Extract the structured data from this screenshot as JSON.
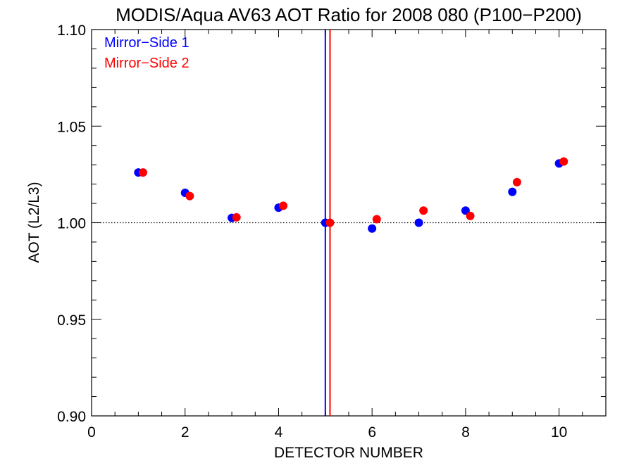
{
  "chart_data": {
    "type": "scatter",
    "title": "MODIS/Aqua AV63 AOT Ratio for 2008 080 (P100−P200)",
    "xlabel": "DETECTOR NUMBER",
    "ylabel": "AOT (L2/L3)",
    "xlim": [
      0,
      11
    ],
    "ylim": [
      0.9,
      1.1
    ],
    "x_ticks": [
      0,
      2,
      4,
      6,
      8,
      10
    ],
    "x_tick_labels": [
      "0",
      "2",
      "4",
      "6",
      "8",
      "10"
    ],
    "y_ticks": [
      0.9,
      0.95,
      1.0,
      1.05,
      1.1
    ],
    "y_tick_labels": [
      "0.90",
      "0.95",
      "1.00",
      "1.05",
      "1.10"
    ],
    "reference_line": {
      "y": 1.0,
      "style": "dotted"
    },
    "legend_position": "top-left",
    "series": [
      {
        "name": "Mirror−Side 1",
        "color": "#0000ff",
        "x": [
          1,
          2,
          3,
          4,
          5,
          6,
          7,
          8,
          9,
          10
        ],
        "y": [
          1.026,
          1.0155,
          1.0025,
          1.0078,
          1.0,
          0.997,
          1.0,
          1.0063,
          1.016,
          1.0307
        ],
        "vline_x": 5.0
      },
      {
        "name": "Mirror−Side 2",
        "color": "#ff0000",
        "x": [
          1.1,
          2.1,
          3.1,
          4.1,
          5.1,
          6.1,
          7.1,
          8.1,
          9.1,
          10.1
        ],
        "y": [
          1.026,
          1.0138,
          1.0028,
          1.0088,
          1.0,
          1.0018,
          1.0063,
          1.0035,
          1.021,
          1.0317
        ],
        "vline_x": 5.1
      }
    ]
  }
}
